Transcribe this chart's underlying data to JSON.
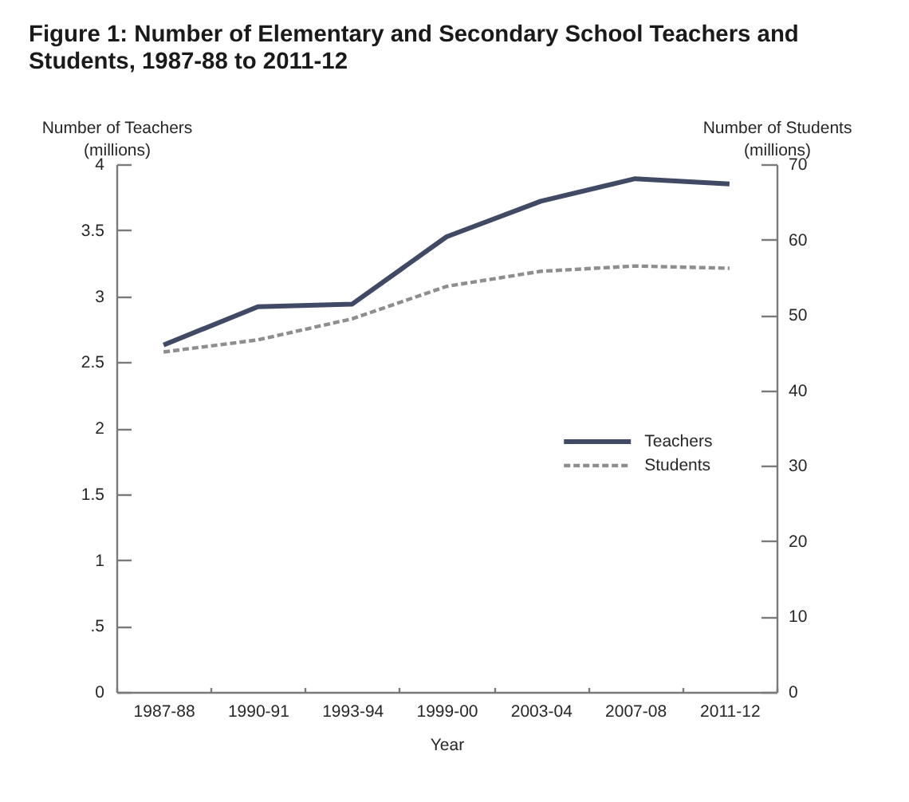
{
  "chart_data": {
    "type": "line",
    "title": "Figure 1: Number of Elementary and Secondary School Teachers and Students, 1987-88 to 2011-12",
    "xlabel": "Year",
    "ylabel": "Number of Teachers\n(millions)",
    "y2label": "Number of Students\n(millions)",
    "categories": [
      "1987-88",
      "1990-91",
      "1993-94",
      "1999-00",
      "2003-04",
      "2007-08",
      "2011-12"
    ],
    "series": [
      {
        "name": "Teachers",
        "color": "#404a64",
        "line_style": "solid",
        "values": [
          2.63,
          2.92,
          2.94,
          3.45,
          3.72,
          3.89,
          3.85
        ]
      },
      {
        "name": "Students",
        "color": "#8e8e8e",
        "line_style": "dashed",
        "axis": "y2",
        "values": [
          45.1,
          46.7,
          49.5,
          53.8,
          55.8,
          56.5,
          56.2
        ]
      }
    ],
    "ylim": [
      0,
      4
    ],
    "yticks": [
      0,
      {
        "value": 0.5,
        "label": ".5"
      },
      1,
      1.5,
      2,
      2.5,
      3,
      3.5,
      4
    ],
    "y2lim": [
      0,
      70
    ],
    "y2ticks": [
      0,
      10,
      20,
      30,
      40,
      50,
      60,
      70
    ],
    "legend": "right"
  }
}
